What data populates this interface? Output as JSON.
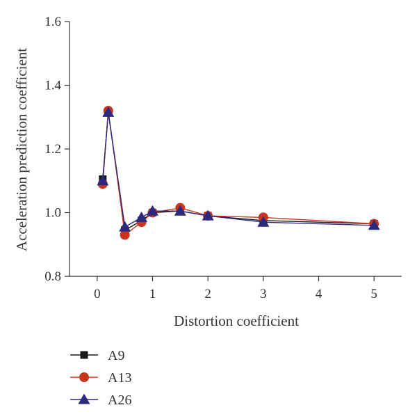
{
  "chart_data": {
    "type": "line",
    "xlabel": "Distortion coefficient",
    "ylabel": "Acceleration prediction coefficient",
    "xlim": [
      -0.5,
      5.5
    ],
    "ylim": [
      0.8,
      1.6
    ],
    "x_ticks": [
      0,
      1,
      2,
      3,
      4,
      5
    ],
    "y_ticks": [
      0.8,
      1.0,
      1.2,
      1.4,
      1.6
    ],
    "x_tick_labels": [
      "0",
      "1",
      "2",
      "3",
      "4",
      "5"
    ],
    "y_tick_labels": [
      "0.8",
      "1.0",
      "1.2",
      "1.4",
      "1.6"
    ],
    "grid": false,
    "legend_position": "bottom-left",
    "series": [
      {
        "name": "A9",
        "color": "#1a1a1a",
        "marker": "square",
        "x": [
          0.1,
          0.2,
          0.5,
          0.8,
          1.0,
          1.5,
          2.0,
          3.0,
          5.0
        ],
        "y": [
          1.105,
          1.315,
          0.945,
          0.975,
          1.0,
          1.005,
          0.99,
          0.975,
          0.965
        ]
      },
      {
        "name": "A13",
        "color": "#c8341c",
        "marker": "circle",
        "x": [
          0.1,
          0.2,
          0.5,
          0.8,
          1.0,
          1.5,
          2.0,
          3.0,
          5.0
        ],
        "y": [
          1.09,
          1.32,
          0.93,
          0.97,
          1.0,
          1.015,
          0.99,
          0.985,
          0.965
        ]
      },
      {
        "name": "A26",
        "color": "#2b2a7e",
        "marker": "triangle",
        "x": [
          0.1,
          0.2,
          0.5,
          0.8,
          1.0,
          1.5,
          2.0,
          3.0,
          5.0
        ],
        "y": [
          1.1,
          1.315,
          0.955,
          0.985,
          1.005,
          1.005,
          0.99,
          0.97,
          0.96
        ]
      }
    ]
  }
}
